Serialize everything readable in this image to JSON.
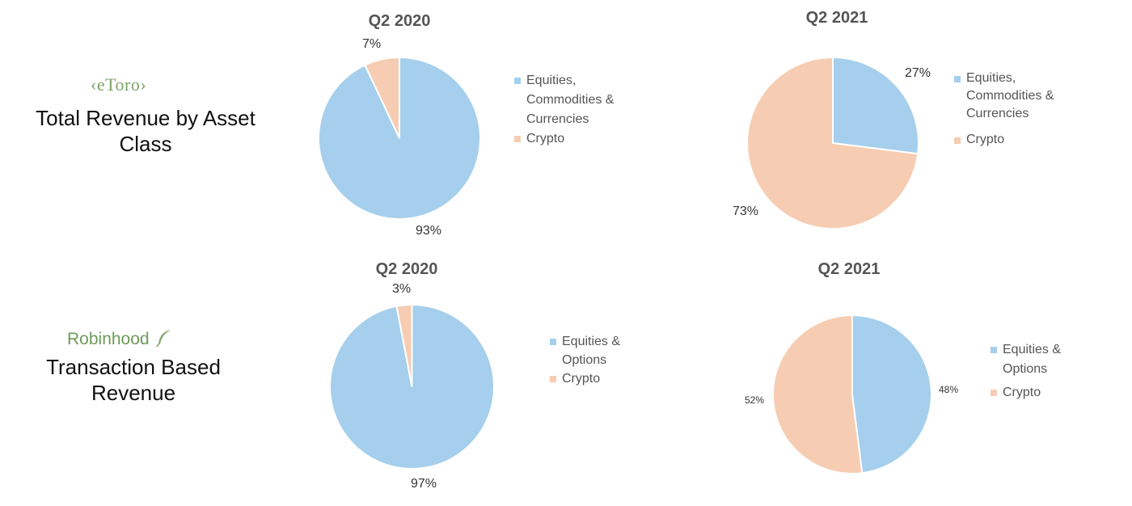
{
  "sections": [
    {
      "logo_text": "eToro",
      "title_lines": [
        "Total Revenue by Asset",
        "Class"
      ]
    },
    {
      "logo_text": "Robinhood",
      "title_lines": [
        "Transaction Based",
        "Revenue"
      ]
    }
  ],
  "colors": {
    "equities": "#a5cfec",
    "crypto": "#f6cdb2"
  },
  "chart_data": [
    {
      "type": "pie",
      "title": "Q2 2020",
      "slices": [
        {
          "label": "Equities, Commodities & Currencies",
          "value": 93,
          "pct_label": "93%"
        },
        {
          "label": "Crypto",
          "value": 7,
          "pct_label": "7%"
        }
      ],
      "legend": [
        "Equities,",
        "Commodities &",
        "Currencies",
        "Crypto"
      ],
      "legend_placement": "right"
    },
    {
      "type": "pie",
      "title": "Q2 2021",
      "slices": [
        {
          "label": "Equities, Commodities & Currencies",
          "value": 27,
          "pct_label": "27%"
        },
        {
          "label": "Crypto",
          "value": 73,
          "pct_label": "73%"
        }
      ],
      "legend": [
        "Equities,",
        "Commodities &",
        "Currencies",
        "Crypto"
      ],
      "legend_placement": "right"
    },
    {
      "type": "pie",
      "title": "Q2 2020",
      "slices": [
        {
          "label": "Equities & Options",
          "value": 97,
          "pct_label": "97%"
        },
        {
          "label": "Crypto",
          "value": 3,
          "pct_label": "3%"
        }
      ],
      "legend": [
        "Equities &",
        "Options",
        "Crypto"
      ],
      "legend_placement": "right"
    },
    {
      "type": "pie",
      "title": "Q2 2021",
      "slices": [
        {
          "label": "Equities & Options",
          "value": 48,
          "pct_label": "48%"
        },
        {
          "label": "Crypto",
          "value": 52,
          "pct_label": "52%"
        }
      ],
      "legend": [
        "Equities &",
        "Options",
        "Crypto"
      ],
      "legend_placement": "right"
    }
  ]
}
